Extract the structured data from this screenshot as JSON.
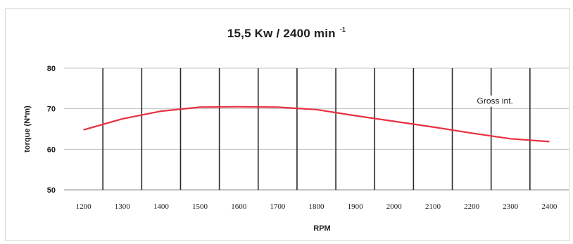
{
  "chart_data": {
    "type": "line",
    "title": "15,5 Kw / 2400 min",
    "title_superscript": "-1",
    "xlabel": "RPM",
    "ylabel": "torque (N*m)",
    "x": [
      1200,
      1300,
      1400,
      1500,
      1600,
      1700,
      1800,
      1900,
      2000,
      2100,
      2200,
      2300,
      2400
    ],
    "xticks": [
      "1200",
      "1300",
      "1400",
      "1500",
      "1600",
      "1700",
      "1800",
      "1900",
      "2000",
      "2100",
      "2200",
      "2300",
      "2400"
    ],
    "xlim": [
      1150,
      2450
    ],
    "ylim": [
      50,
      80
    ],
    "yticks": [
      "50",
      "60",
      "70",
      "80"
    ],
    "series": [
      {
        "values": [
          64.8,
          67.5,
          69.4,
          70.4,
          70.5,
          70.4,
          69.8,
          68.3,
          66.9,
          65.5,
          64.0,
          62.6,
          61.9
        ],
        "color": "#e8303f"
      }
    ],
    "annotations": [
      {
        "text": "Gross int.",
        "x": 2260,
        "y": 71.2
      }
    ],
    "vertical_gridlines_at": [
      1250,
      1350,
      1450,
      1550,
      1650,
      1750,
      1850,
      1950,
      2050,
      2150,
      2250,
      2350
    ],
    "horizontal_gridlines": true,
    "colors": {
      "vertical_gridline": "#2a2a2a",
      "horizontal_gridline": "#c0c0c0",
      "axis": "#888888",
      "text": "#1f1f1f"
    }
  }
}
